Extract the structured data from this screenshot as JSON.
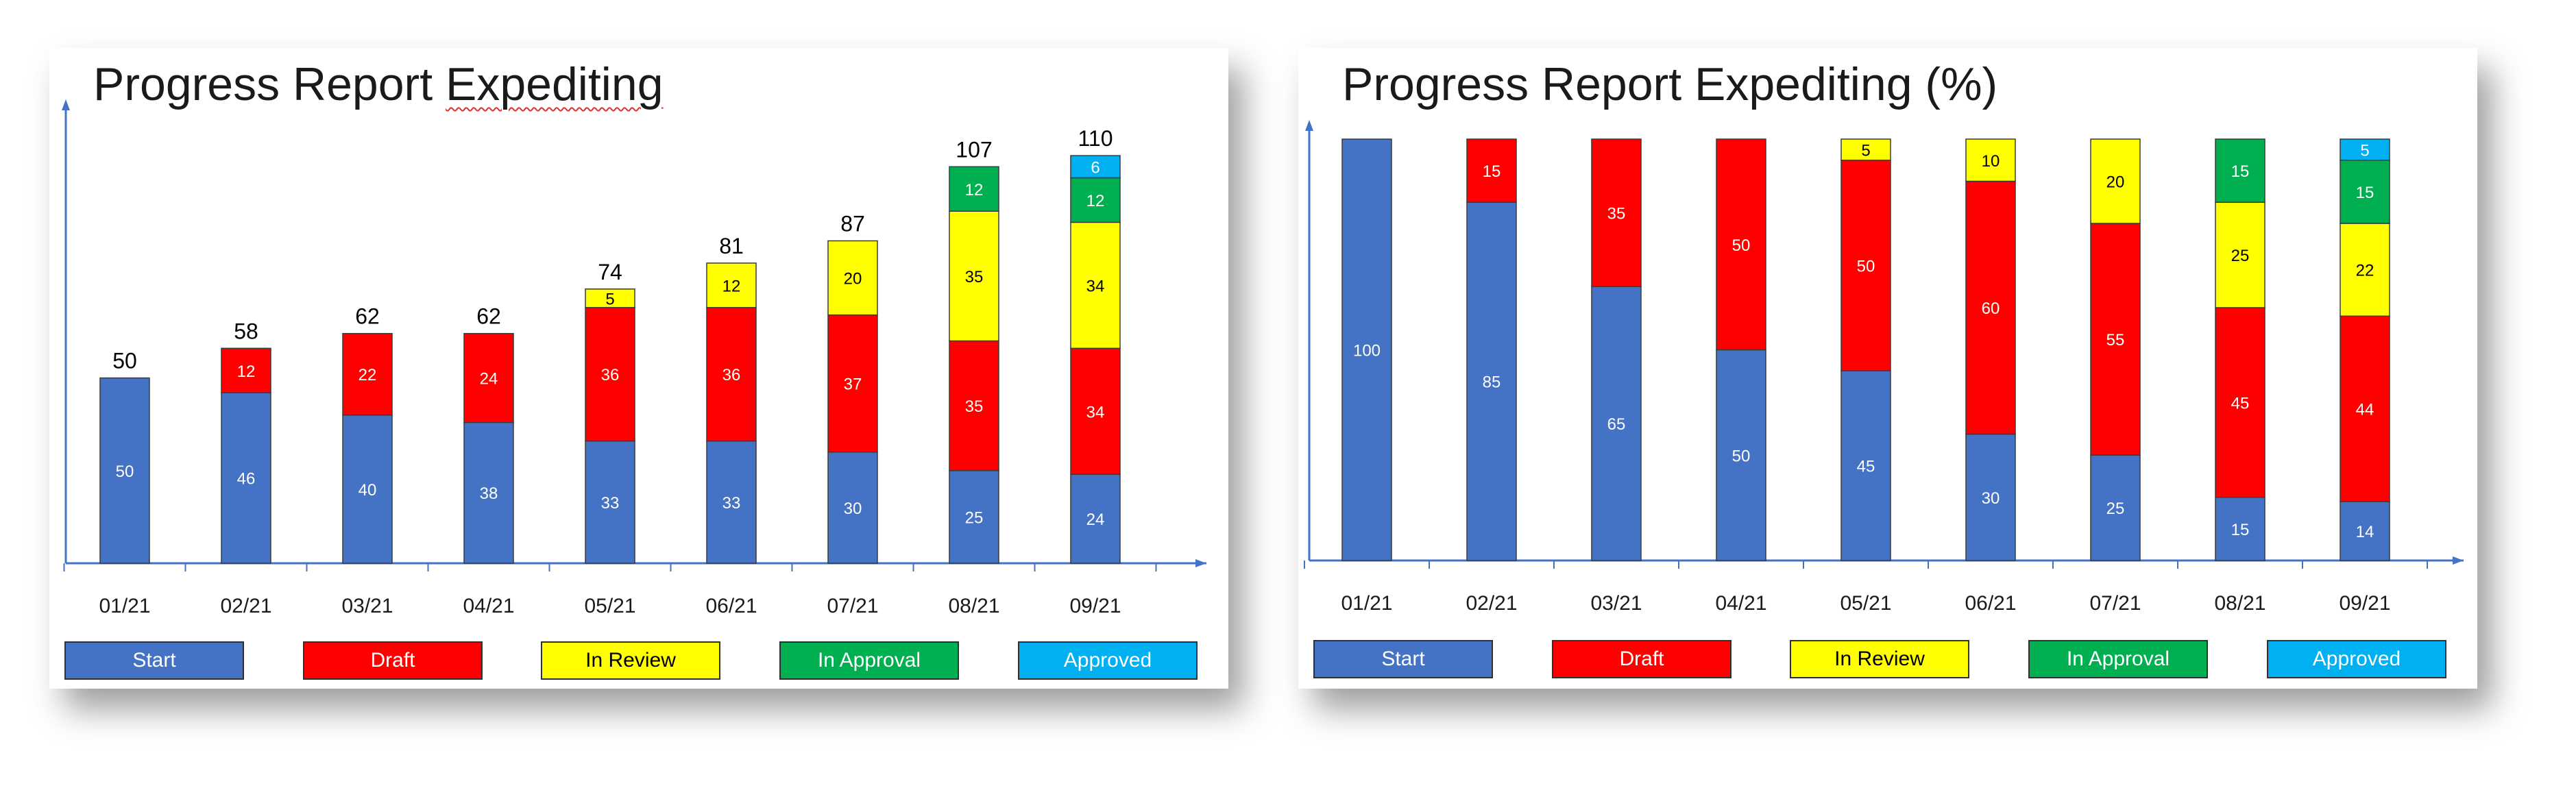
{
  "chart_data": [
    {
      "type": "bar",
      "stacked": true,
      "title": "Progress Report Expediting",
      "xlabel": "",
      "ylabel": "",
      "ylim": [
        0,
        120
      ],
      "grid": false,
      "legend_position": "bottom",
      "categories": [
        "01/21",
        "02/21",
        "03/21",
        "04/21",
        "05/21",
        "06/21",
        "07/21",
        "08/21",
        "09/21"
      ],
      "series": [
        {
          "name": "Start",
          "color": "#4472C4",
          "values": [
            50,
            46,
            40,
            38,
            33,
            33,
            30,
            25,
            24
          ]
        },
        {
          "name": "Draft",
          "color": "#FF0000",
          "values": [
            0,
            12,
            22,
            24,
            36,
            36,
            37,
            35,
            34
          ]
        },
        {
          "name": "In Review",
          "color": "#FFFF00",
          "values": [
            0,
            0,
            0,
            0,
            5,
            12,
            20,
            35,
            34
          ]
        },
        {
          "name": "In Approval",
          "color": "#00B050",
          "values": [
            0,
            0,
            0,
            0,
            0,
            0,
            0,
            12,
            12
          ]
        },
        {
          "name": "Approved",
          "color": "#00B0F0",
          "values": [
            0,
            0,
            0,
            0,
            0,
            0,
            0,
            0,
            6
          ]
        }
      ],
      "totals": [
        50,
        58,
        62,
        62,
        74,
        81,
        87,
        107,
        110
      ]
    },
    {
      "type": "bar",
      "stacked": true,
      "title": "Progress Report Expediting (%)",
      "xlabel": "",
      "ylabel": "",
      "ylim": [
        0,
        100
      ],
      "grid": false,
      "legend_position": "bottom",
      "categories": [
        "01/21",
        "02/21",
        "03/21",
        "04/21",
        "05/21",
        "06/21",
        "07/21",
        "08/21",
        "09/21"
      ],
      "series": [
        {
          "name": "Start",
          "color": "#4472C4",
          "values": [
            100,
            85,
            65,
            50,
            45,
            30,
            25,
            15,
            14
          ]
        },
        {
          "name": "Draft",
          "color": "#FF0000",
          "values": [
            0,
            15,
            35,
            50,
            50,
            60,
            55,
            45,
            44
          ]
        },
        {
          "name": "In Review",
          "color": "#FFFF00",
          "values": [
            0,
            0,
            0,
            0,
            5,
            10,
            20,
            25,
            22
          ]
        },
        {
          "name": "In Approval",
          "color": "#00B050",
          "values": [
            0,
            0,
            0,
            0,
            0,
            0,
            0,
            15,
            15
          ]
        },
        {
          "name": "Approved",
          "color": "#00B0F0",
          "values": [
            0,
            0,
            0,
            0,
            0,
            0,
            0,
            0,
            5
          ]
        }
      ]
    }
  ]
}
